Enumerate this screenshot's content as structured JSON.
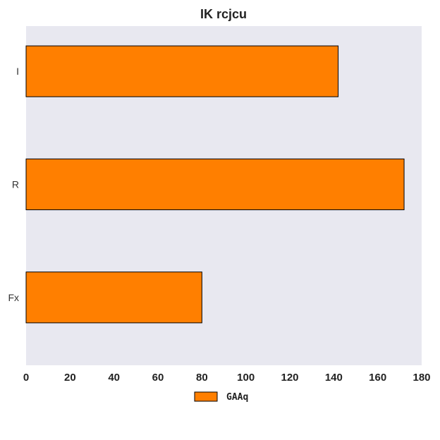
{
  "chart_data": {
    "type": "bar",
    "orientation": "horizontal",
    "title": "IK rcjcu",
    "xlabel": "",
    "ylabel": "",
    "categories": [
      "I",
      "R",
      "Fx"
    ],
    "series": [
      {
        "name": "GAAq",
        "values": [
          142,
          172,
          80
        ],
        "color": "#ff7f00"
      }
    ],
    "xlim": [
      0,
      180
    ],
    "xticks": [
      0,
      20,
      40,
      60,
      80,
      100,
      120,
      140,
      160,
      180
    ],
    "grid": false,
    "legend": "bottom-center",
    "plot_background": "#e8e8f0"
  }
}
